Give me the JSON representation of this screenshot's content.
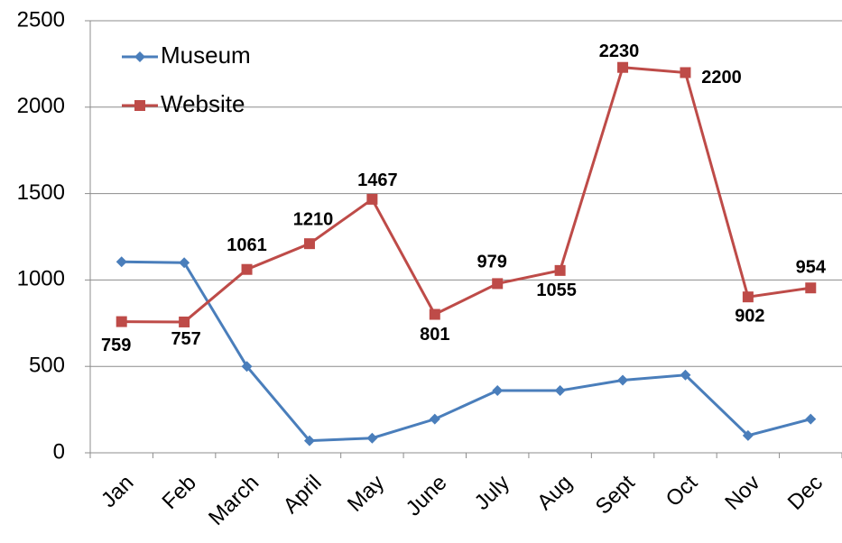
{
  "chart_data": {
    "type": "line",
    "categories": [
      "Jan",
      "Feb",
      "March",
      "April",
      "May",
      "June",
      "July",
      "Aug",
      "Sept",
      "Oct",
      "Nov",
      "Dec"
    ],
    "series": [
      {
        "name": "Museum",
        "color": "#4a7ebb",
        "marker": "diamond",
        "values": [
          1105,
          1100,
          500,
          70,
          85,
          195,
          360,
          360,
          420,
          450,
          100,
          195
        ]
      },
      {
        "name": "Website",
        "color": "#be4b48",
        "marker": "square",
        "values": [
          759,
          757,
          1061,
          1210,
          1467,
          801,
          979,
          1055,
          2230,
          2200,
          902,
          954
        ],
        "data_labels": true
      }
    ],
    "ylim": [
      0,
      2500
    ],
    "yticks": [
      0,
      500,
      1000,
      1500,
      2000,
      2500
    ],
    "grid": true,
    "legend": "top-left"
  }
}
